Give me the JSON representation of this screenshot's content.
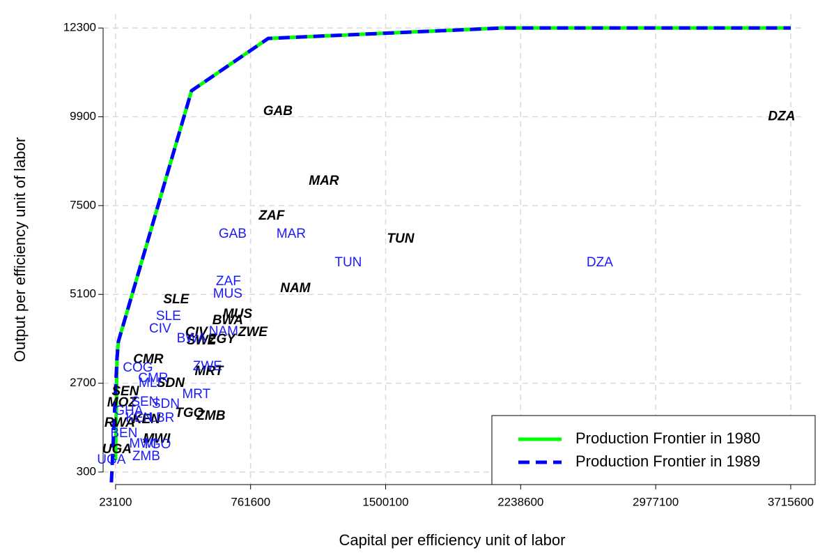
{
  "chart_data": {
    "type": "scatter",
    "x_label": "Capital per efficiency unit of labor",
    "y_label": "Output per efficiency unit of labor",
    "xlim": [
      -45000,
      3773000
    ],
    "ylim": [
      -40,
      12680
    ],
    "xticks": [
      23100,
      761600,
      1500100,
      2238600,
      2977100,
      3715600
    ],
    "yticks": [
      300,
      2700,
      5100,
      7500,
      9900,
      12300
    ],
    "grid": true,
    "legend": "bottom right",
    "lines": [
      {
        "name": "Production Frontier in 1980",
        "color": "#00ff00",
        "dashed": false,
        "x": [
          23100,
          30700,
          38300,
          438500,
          857600,
          2134200,
          3715600
        ],
        "y": [
          620,
          3351,
          3822,
          10604,
          12017,
          12300,
          12300
        ]
      },
      {
        "name": "Production Frontier in 1989",
        "color": "#0000ff",
        "dashed": true,
        "x": [
          300,
          30700,
          38300,
          438500,
          857600,
          2134200,
          3715600
        ],
        "y": [
          20,
          3351,
          3822,
          10604,
          12017,
          12300,
          12300
        ]
      }
    ],
    "series": [
      {
        "color": "#000000",
        "bold_italic": true,
        "labels": [
          "GAB",
          "DZA",
          "MAR",
          "ZAF",
          "TUN",
          "NAM",
          "SLE",
          "MUS",
          "BWA",
          "ZWE",
          "CIV",
          "EGY",
          "SWZ",
          "CMR",
          "MRT",
          "SDN",
          "SEN",
          "MOZ",
          "TGO",
          "ZMB",
          "RWA",
          "KEN",
          "MWI",
          "UGA"
        ],
        "x": [
          911000,
          3666000,
          1162500,
          876700,
          1581700,
          1006200,
          354600,
          690000,
          636600,
          773800,
          465100,
          602300,
          491800,
          202200,
          533700,
          324100,
          76500,
          57400,
          427000,
          545100,
          46000,
          190800,
          247900,
          30700
        ],
        "values": [
          10040,
          9900,
          8155,
          7213,
          6592,
          5254,
          4952,
          4557,
          4387,
          4067,
          4067,
          3879,
          3840,
          3332,
          3012,
          2691,
          2466,
          2164,
          1881,
          1806,
          1618,
          1712,
          1184,
          902
        ]
      },
      {
        "color": "#1a1aff",
        "bold_italic": false,
        "labels": [
          "GAB",
          "MAR",
          "TUN",
          "DZA",
          "ZAF",
          "MUS",
          "SLE",
          "CIV",
          "NAM",
          "BWA",
          "ZWE",
          "COG",
          "CMR",
          "MLI",
          "MRT",
          "SEN",
          "SDN",
          "LBR",
          "GHA",
          "KEN",
          "BEN",
          "MWI",
          "TGO",
          "ZMB",
          "UGA"
        ],
        "x": [
          663300,
          983400,
          1295800,
          2671500,
          640400,
          636600,
          312700,
          267000,
          613700,
          438500,
          526100,
          145000,
          228900,
          209800,
          465100,
          183100,
          297500,
          274600,
          95500,
          152700,
          68800,
          171700,
          247900,
          190800,
          300
        ],
        "values": [
          6723,
          6723,
          5951,
          5951,
          5442,
          5103,
          4500,
          4161,
          4086,
          3898,
          3144,
          3106,
          2823,
          2691,
          2390,
          2183,
          2126,
          1750,
          1938,
          1750,
          1335,
          1052,
          1033,
          714,
          619
        ]
      }
    ]
  }
}
